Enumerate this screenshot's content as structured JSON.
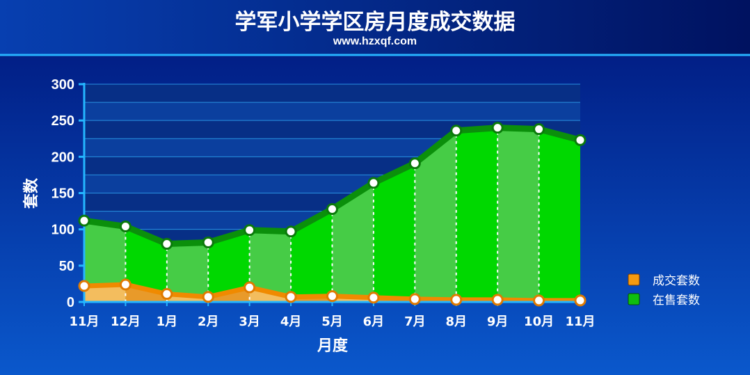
{
  "title": "学军小学学区房月度成交数据",
  "subtitle": "www.hzxqf.com",
  "colors": {
    "background_top": "#00167a",
    "background_bottom": "#0a56c8",
    "grid_line": "#2fa2f0",
    "axis": "#24b6ff",
    "deal_series": "#f08a00",
    "deal_fill": "#f2b85a",
    "sale_series": "#0b8f0b",
    "sale_fill_light": "#46cc46",
    "sale_fill_dark": "#00d800",
    "marker_fill": "#ffffff"
  },
  "chart_data": {
    "type": "area",
    "title": "学军小学学区房月度成交数据",
    "xlabel": "月度",
    "ylabel": "套数",
    "categories": [
      "11月",
      "12月",
      "1月",
      "2月",
      "3月",
      "4月",
      "5月",
      "6月",
      "7月",
      "8月",
      "9月",
      "10月",
      "11月"
    ],
    "ylim": [
      0,
      300
    ],
    "yticks": [
      0,
      50,
      100,
      150,
      200,
      250,
      300
    ],
    "grid": true,
    "legend_position": "right",
    "series": [
      {
        "name": "成交套数",
        "values": [
          22,
          24,
          11,
          7,
          20,
          7,
          8,
          6,
          4,
          3,
          3,
          2,
          2
        ]
      },
      {
        "name": "在售套数",
        "values": [
          112,
          104,
          80,
          82,
          99,
          97,
          128,
          164,
          191,
          236,
          240,
          238,
          223
        ]
      }
    ]
  }
}
